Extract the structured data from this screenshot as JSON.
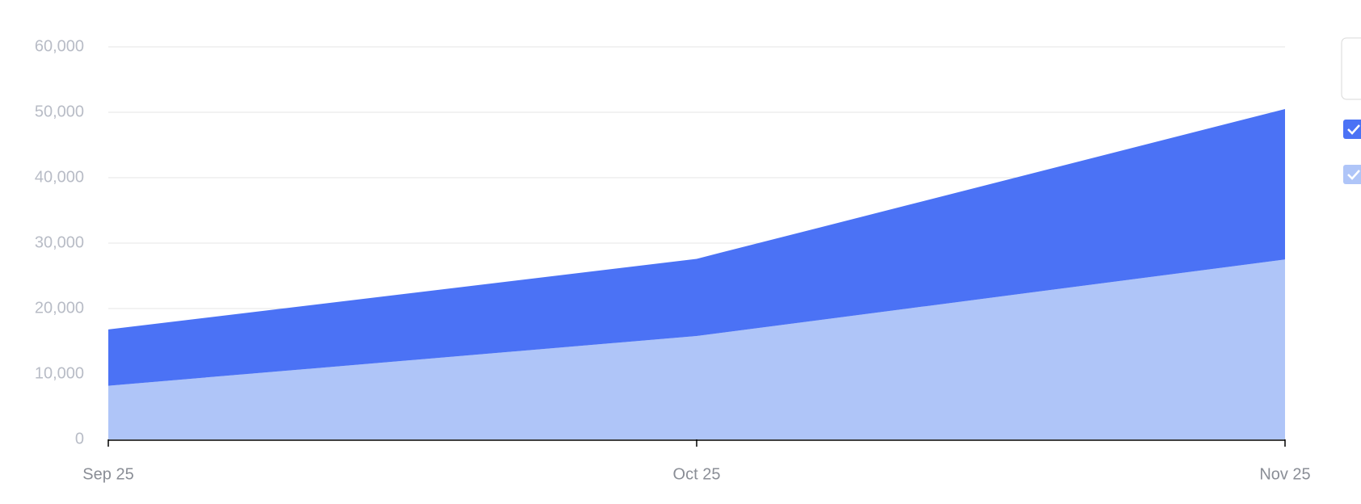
{
  "chart_data": {
    "type": "stacked-area",
    "categories": [
      "Sep 25",
      "Oct 25",
      "Nov 25"
    ],
    "series": [
      {
        "color": "#afc5f8",
        "values": [
          8200,
          15800,
          27500
        ]
      },
      {
        "color": "#4b72f5",
        "values": [
          8600,
          11800,
          23000
        ]
      }
    ],
    "ylim": [
      0,
      60000
    ],
    "yticks": [
      0,
      {
        "value": 10000,
        "label": "10,000"
      },
      {
        "value": 20000,
        "label": "20,000"
      },
      {
        "value": 30000,
        "label": "30,000"
      },
      {
        "value": 40000,
        "label": "40,000"
      },
      {
        "value": 50000,
        "label": "50,000"
      },
      {
        "value": 60000,
        "label": "60,000"
      }
    ],
    "grid": true
  }
}
